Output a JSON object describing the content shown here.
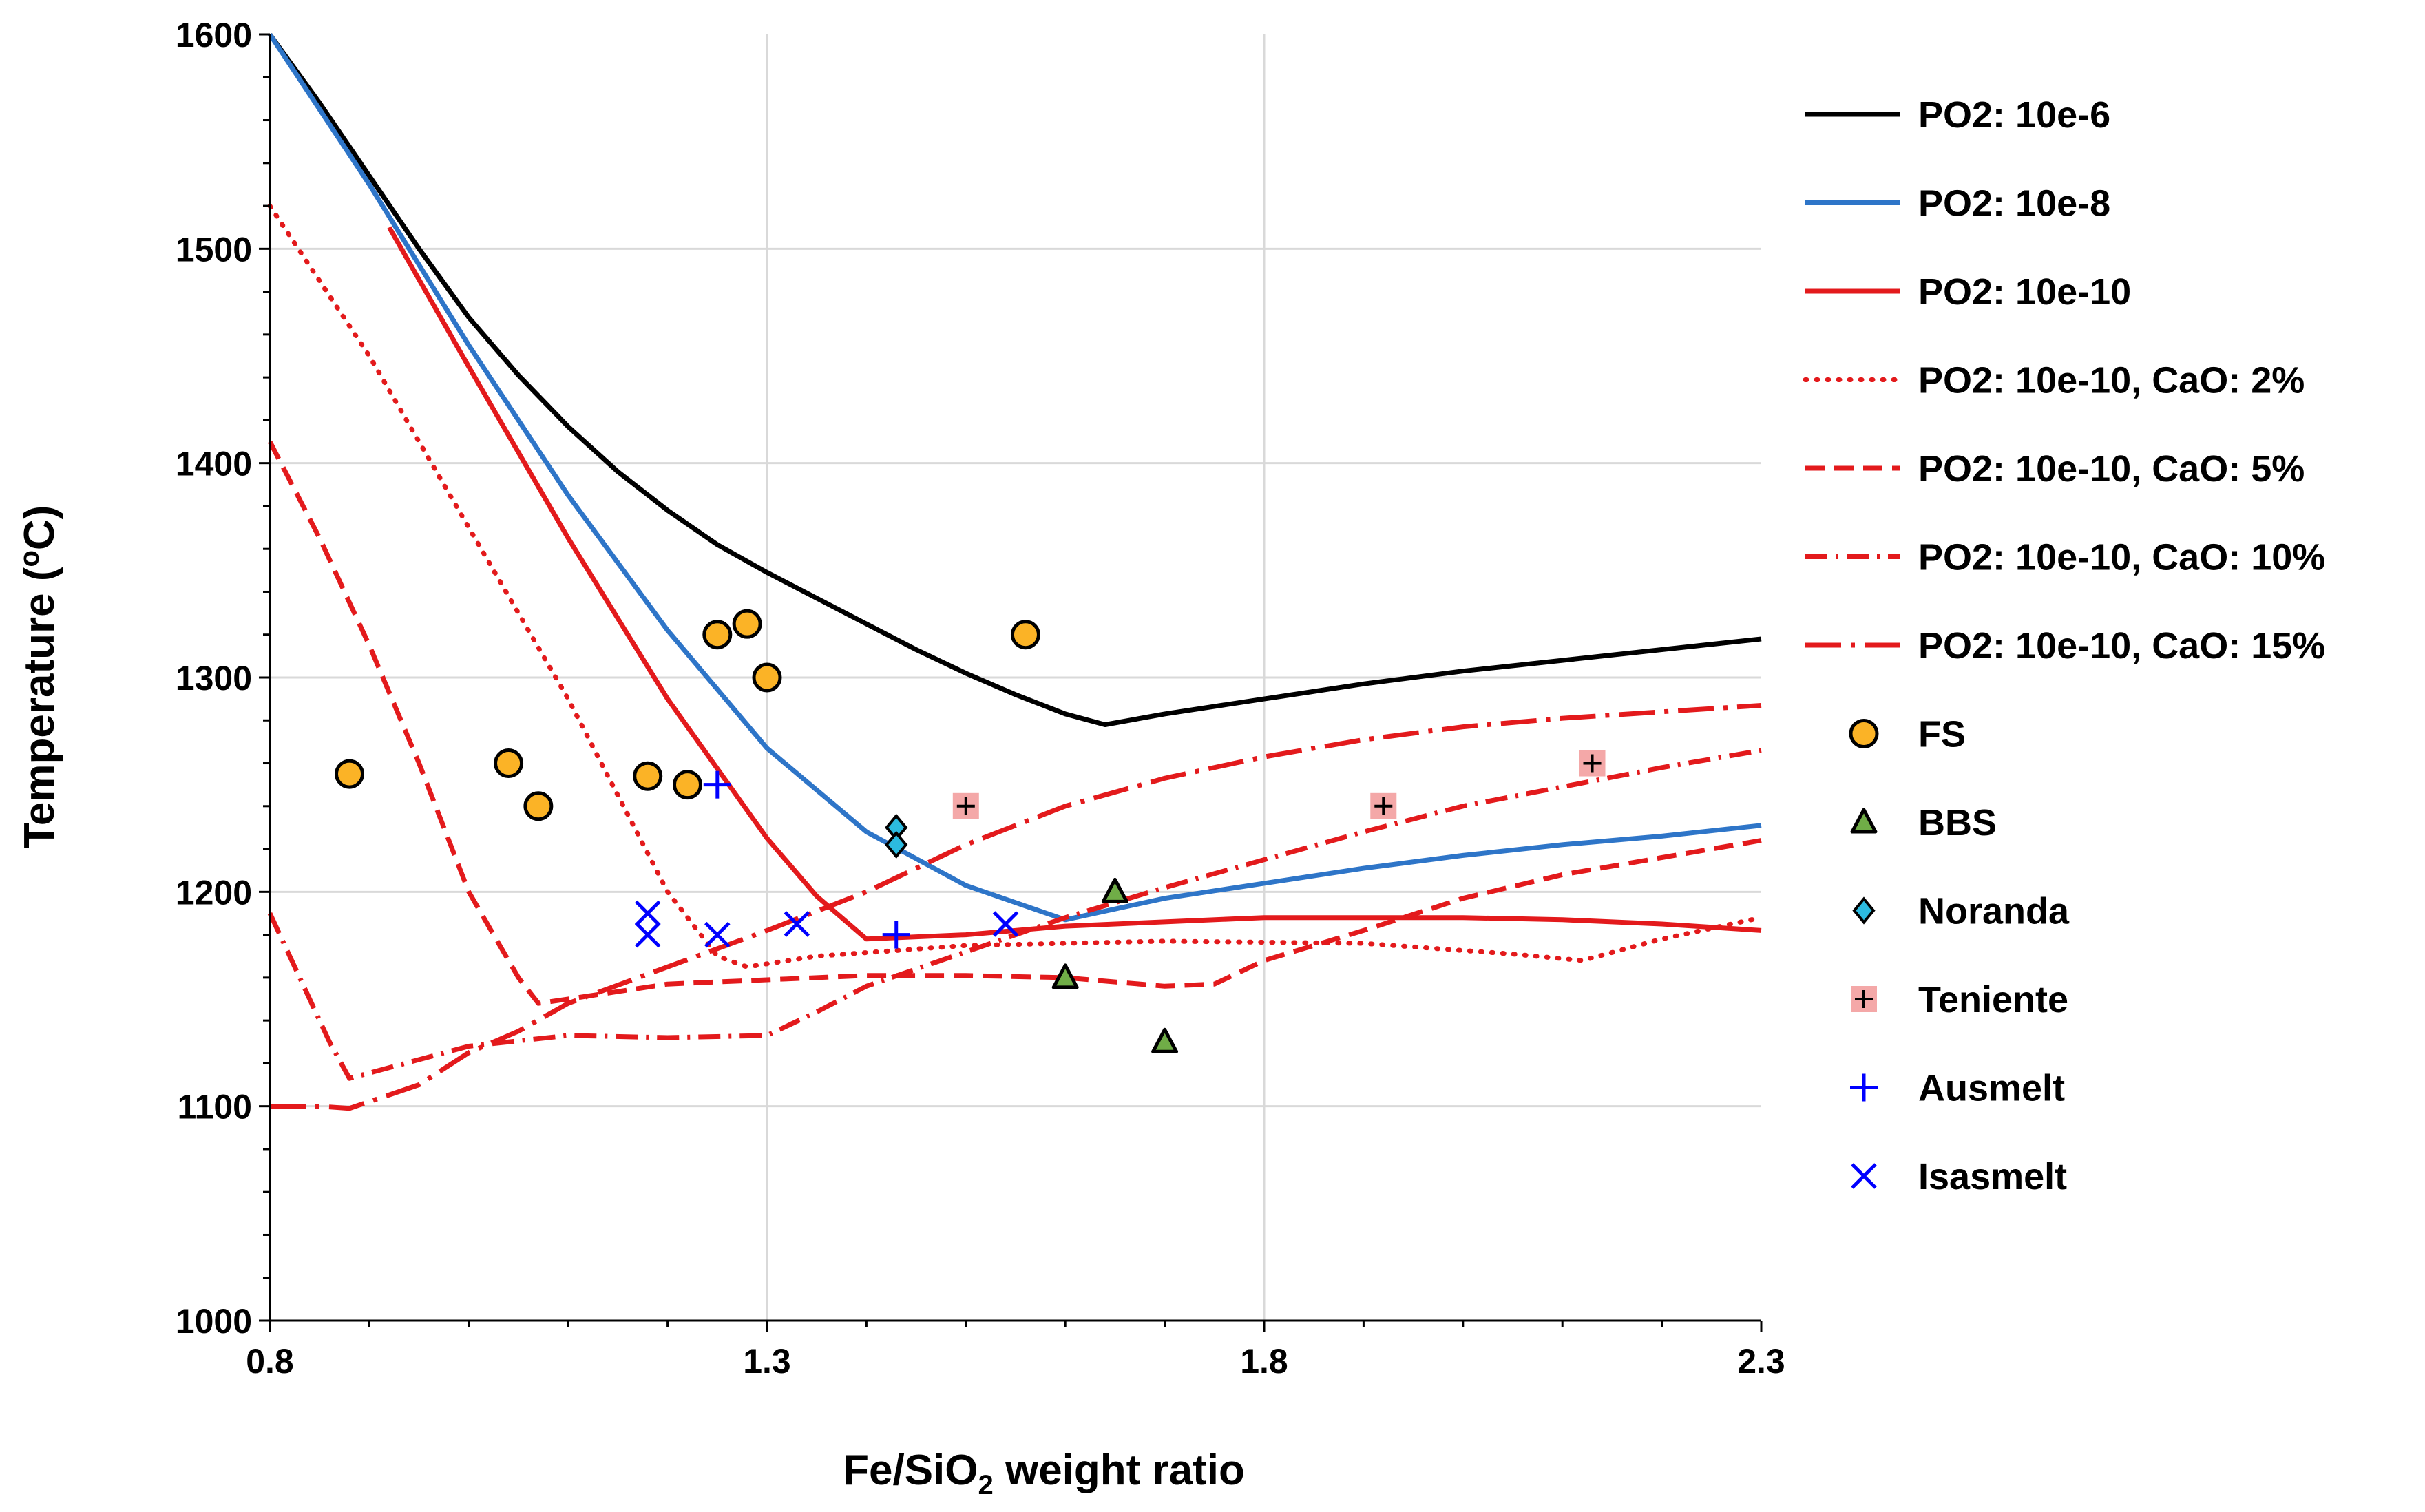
{
  "chart_data": {
    "type": "scatter",
    "title": "",
    "xlabel": {
      "prefix": "Fe/SiO",
      "sub": "2",
      "suffix": " weight ratio"
    },
    "ylabel": {
      "prefix": "Temperature (",
      "sup": "o",
      "suffix": "C)"
    },
    "xlim": [
      0.8,
      2.3
    ],
    "ylim": [
      1000,
      1600
    ],
    "x_ticks": [
      {
        "v": 0.8,
        "label": "0.8"
      },
      {
        "v": 1.3,
        "label": "1.3"
      },
      {
        "v": 1.8,
        "label": "1.8"
      },
      {
        "v": 2.3,
        "label": "2.3"
      }
    ],
    "y_ticks": [
      {
        "v": 1000,
        "label": "1000"
      },
      {
        "v": 1100,
        "label": "1100"
      },
      {
        "v": 1200,
        "label": "1200"
      },
      {
        "v": 1300,
        "label": "1300"
      },
      {
        "v": 1400,
        "label": "1400"
      },
      {
        "v": 1500,
        "label": "1500"
      },
      {
        "v": 1600,
        "label": "1600"
      }
    ],
    "x_gridlines": [
      1.3,
      1.8
    ],
    "y_gridlines": [
      1100,
      1200,
      1300,
      1400,
      1500
    ],
    "line_series": [
      {
        "name": "PO2: 10e-6",
        "color": "#000000",
        "dash": "solid",
        "points": [
          [
            0.8,
            1600
          ],
          [
            0.85,
            1568
          ],
          [
            0.9,
            1534
          ],
          [
            0.95,
            1500
          ],
          [
            1.0,
            1468
          ],
          [
            1.05,
            1441
          ],
          [
            1.1,
            1417
          ],
          [
            1.15,
            1396
          ],
          [
            1.2,
            1378
          ],
          [
            1.25,
            1362
          ],
          [
            1.3,
            1349
          ],
          [
            1.35,
            1337
          ],
          [
            1.4,
            1325
          ],
          [
            1.45,
            1313
          ],
          [
            1.5,
            1302
          ],
          [
            1.55,
            1292
          ],
          [
            1.6,
            1283
          ],
          [
            1.64,
            1278
          ],
          [
            1.7,
            1283
          ],
          [
            1.8,
            1290
          ],
          [
            1.9,
            1297
          ],
          [
            2.0,
            1303
          ],
          [
            2.1,
            1308
          ],
          [
            2.2,
            1313
          ],
          [
            2.3,
            1318
          ]
        ]
      },
      {
        "name": "PO2: 10e-8",
        "color": "#2e75c8",
        "dash": "solid",
        "points": [
          [
            0.8,
            1600
          ],
          [
            0.9,
            1530
          ],
          [
            1.0,
            1455
          ],
          [
            1.1,
            1385
          ],
          [
            1.2,
            1322
          ],
          [
            1.3,
            1267
          ],
          [
            1.4,
            1228
          ],
          [
            1.5,
            1203
          ],
          [
            1.55,
            1195
          ],
          [
            1.6,
            1187
          ],
          [
            1.7,
            1197
          ],
          [
            1.8,
            1204
          ],
          [
            1.9,
            1211
          ],
          [
            2.0,
            1217
          ],
          [
            2.1,
            1222
          ],
          [
            2.2,
            1226
          ],
          [
            2.3,
            1231
          ]
        ]
      },
      {
        "name": "PO2: 10e-10",
        "color": "#e31a1c",
        "dash": "solid",
        "points": [
          [
            0.92,
            1510
          ],
          [
            1.0,
            1445
          ],
          [
            1.1,
            1365
          ],
          [
            1.2,
            1290
          ],
          [
            1.3,
            1225
          ],
          [
            1.35,
            1198
          ],
          [
            1.4,
            1178
          ],
          [
            1.5,
            1180
          ],
          [
            1.6,
            1184
          ],
          [
            1.7,
            1186
          ],
          [
            1.8,
            1188
          ],
          [
            1.9,
            1188
          ],
          [
            2.0,
            1188
          ],
          [
            2.1,
            1187
          ],
          [
            2.2,
            1185
          ],
          [
            2.3,
            1182
          ]
        ]
      },
      {
        "name": "PO2: 10e-10, CaO: 2%",
        "color": "#e31a1c",
        "dash": "dot",
        "points": [
          [
            0.8,
            1520
          ],
          [
            0.9,
            1450
          ],
          [
            1.0,
            1370
          ],
          [
            1.1,
            1290
          ],
          [
            1.2,
            1200
          ],
          [
            1.25,
            1170
          ],
          [
            1.28,
            1165
          ],
          [
            1.35,
            1170
          ],
          [
            1.5,
            1175
          ],
          [
            1.7,
            1177
          ],
          [
            1.9,
            1176
          ],
          [
            2.05,
            1171
          ],
          [
            2.12,
            1168
          ],
          [
            2.2,
            1178
          ],
          [
            2.3,
            1188
          ]
        ]
      },
      {
        "name": "PO2: 10e-10, CaO: 5%",
        "color": "#e31a1c",
        "dash": "dash",
        "points": [
          [
            0.8,
            1410
          ],
          [
            0.85,
            1365
          ],
          [
            0.9,
            1315
          ],
          [
            0.95,
            1260
          ],
          [
            1.0,
            1200
          ],
          [
            1.05,
            1160
          ],
          [
            1.07,
            1148
          ],
          [
            1.1,
            1150
          ],
          [
            1.2,
            1157
          ],
          [
            1.3,
            1159
          ],
          [
            1.4,
            1161
          ],
          [
            1.5,
            1161
          ],
          [
            1.6,
            1160
          ],
          [
            1.7,
            1156
          ],
          [
            1.75,
            1157
          ],
          [
            1.8,
            1168
          ],
          [
            1.9,
            1182
          ],
          [
            2.0,
            1197
          ],
          [
            2.1,
            1208
          ],
          [
            2.2,
            1216
          ],
          [
            2.3,
            1224
          ]
        ]
      },
      {
        "name": "PO2: 10e-10, CaO: 10%",
        "color": "#e31a1c",
        "dash": "dashdot",
        "points": [
          [
            0.8,
            1190
          ],
          [
            0.83,
            1160
          ],
          [
            0.86,
            1130
          ],
          [
            0.88,
            1113
          ],
          [
            0.92,
            1118
          ],
          [
            1.0,
            1128
          ],
          [
            1.1,
            1133
          ],
          [
            1.2,
            1132
          ],
          [
            1.3,
            1133
          ],
          [
            1.35,
            1144
          ],
          [
            1.4,
            1156
          ],
          [
            1.5,
            1172
          ],
          [
            1.6,
            1188
          ],
          [
            1.7,
            1202
          ],
          [
            1.8,
            1215
          ],
          [
            1.9,
            1228
          ],
          [
            2.0,
            1240
          ],
          [
            2.1,
            1249
          ],
          [
            2.2,
            1258
          ],
          [
            2.3,
            1266
          ]
        ]
      },
      {
        "name": "PO2: 10e-10, CaO: 15%",
        "color": "#e31a1c",
        "dash": "longdash",
        "points": [
          [
            0.8,
            1100
          ],
          [
            0.85,
            1100
          ],
          [
            0.88,
            1099
          ],
          [
            0.95,
            1110
          ],
          [
            1.0,
            1125
          ],
          [
            1.05,
            1135
          ],
          [
            1.1,
            1148
          ],
          [
            1.2,
            1165
          ],
          [
            1.3,
            1182
          ],
          [
            1.4,
            1200
          ],
          [
            1.5,
            1222
          ],
          [
            1.6,
            1240
          ],
          [
            1.7,
            1253
          ],
          [
            1.8,
            1263
          ],
          [
            1.9,
            1271
          ],
          [
            2.0,
            1277
          ],
          [
            2.1,
            1281
          ],
          [
            2.2,
            1284
          ],
          [
            2.3,
            1287
          ]
        ]
      }
    ],
    "scatter_series": [
      {
        "name": "FS",
        "marker": "circle",
        "fill": "#fbb326",
        "stroke": "#000000",
        "points": [
          [
            0.88,
            1255
          ],
          [
            1.04,
            1260
          ],
          [
            1.07,
            1240
          ],
          [
            1.18,
            1254
          ],
          [
            1.22,
            1250
          ],
          [
            1.25,
            1320
          ],
          [
            1.28,
            1325
          ],
          [
            1.3,
            1300
          ],
          [
            1.56,
            1320
          ]
        ]
      },
      {
        "name": "BBS",
        "marker": "triangle",
        "fill": "#70ad47",
        "stroke": "#000000",
        "points": [
          [
            1.6,
            1160
          ],
          [
            1.65,
            1200
          ],
          [
            1.7,
            1130
          ]
        ]
      },
      {
        "name": "Noranda",
        "marker": "diamond",
        "fill": "#2cbbe0",
        "stroke": "#000000",
        "points": [
          [
            1.43,
            1230
          ],
          [
            1.43,
            1222
          ]
        ]
      },
      {
        "name": "Teniente",
        "marker": "squareplus",
        "fill": "#f4a8a8",
        "stroke": "#000000",
        "points": [
          [
            1.5,
            1240
          ],
          [
            1.92,
            1240
          ],
          [
            2.13,
            1260
          ]
        ]
      },
      {
        "name": "Ausmelt",
        "marker": "plus",
        "fill": "none",
        "stroke": "#0000ff",
        "points": [
          [
            1.25,
            1250
          ],
          [
            1.43,
            1180
          ]
        ]
      },
      {
        "name": "Isasmelt",
        "marker": "x",
        "fill": "none",
        "stroke": "#0000ff",
        "points": [
          [
            1.18,
            1190
          ],
          [
            1.18,
            1180
          ],
          [
            1.25,
            1180
          ],
          [
            1.33,
            1185
          ],
          [
            1.54,
            1185
          ]
        ]
      }
    ],
    "legend": {
      "position": "right"
    }
  }
}
